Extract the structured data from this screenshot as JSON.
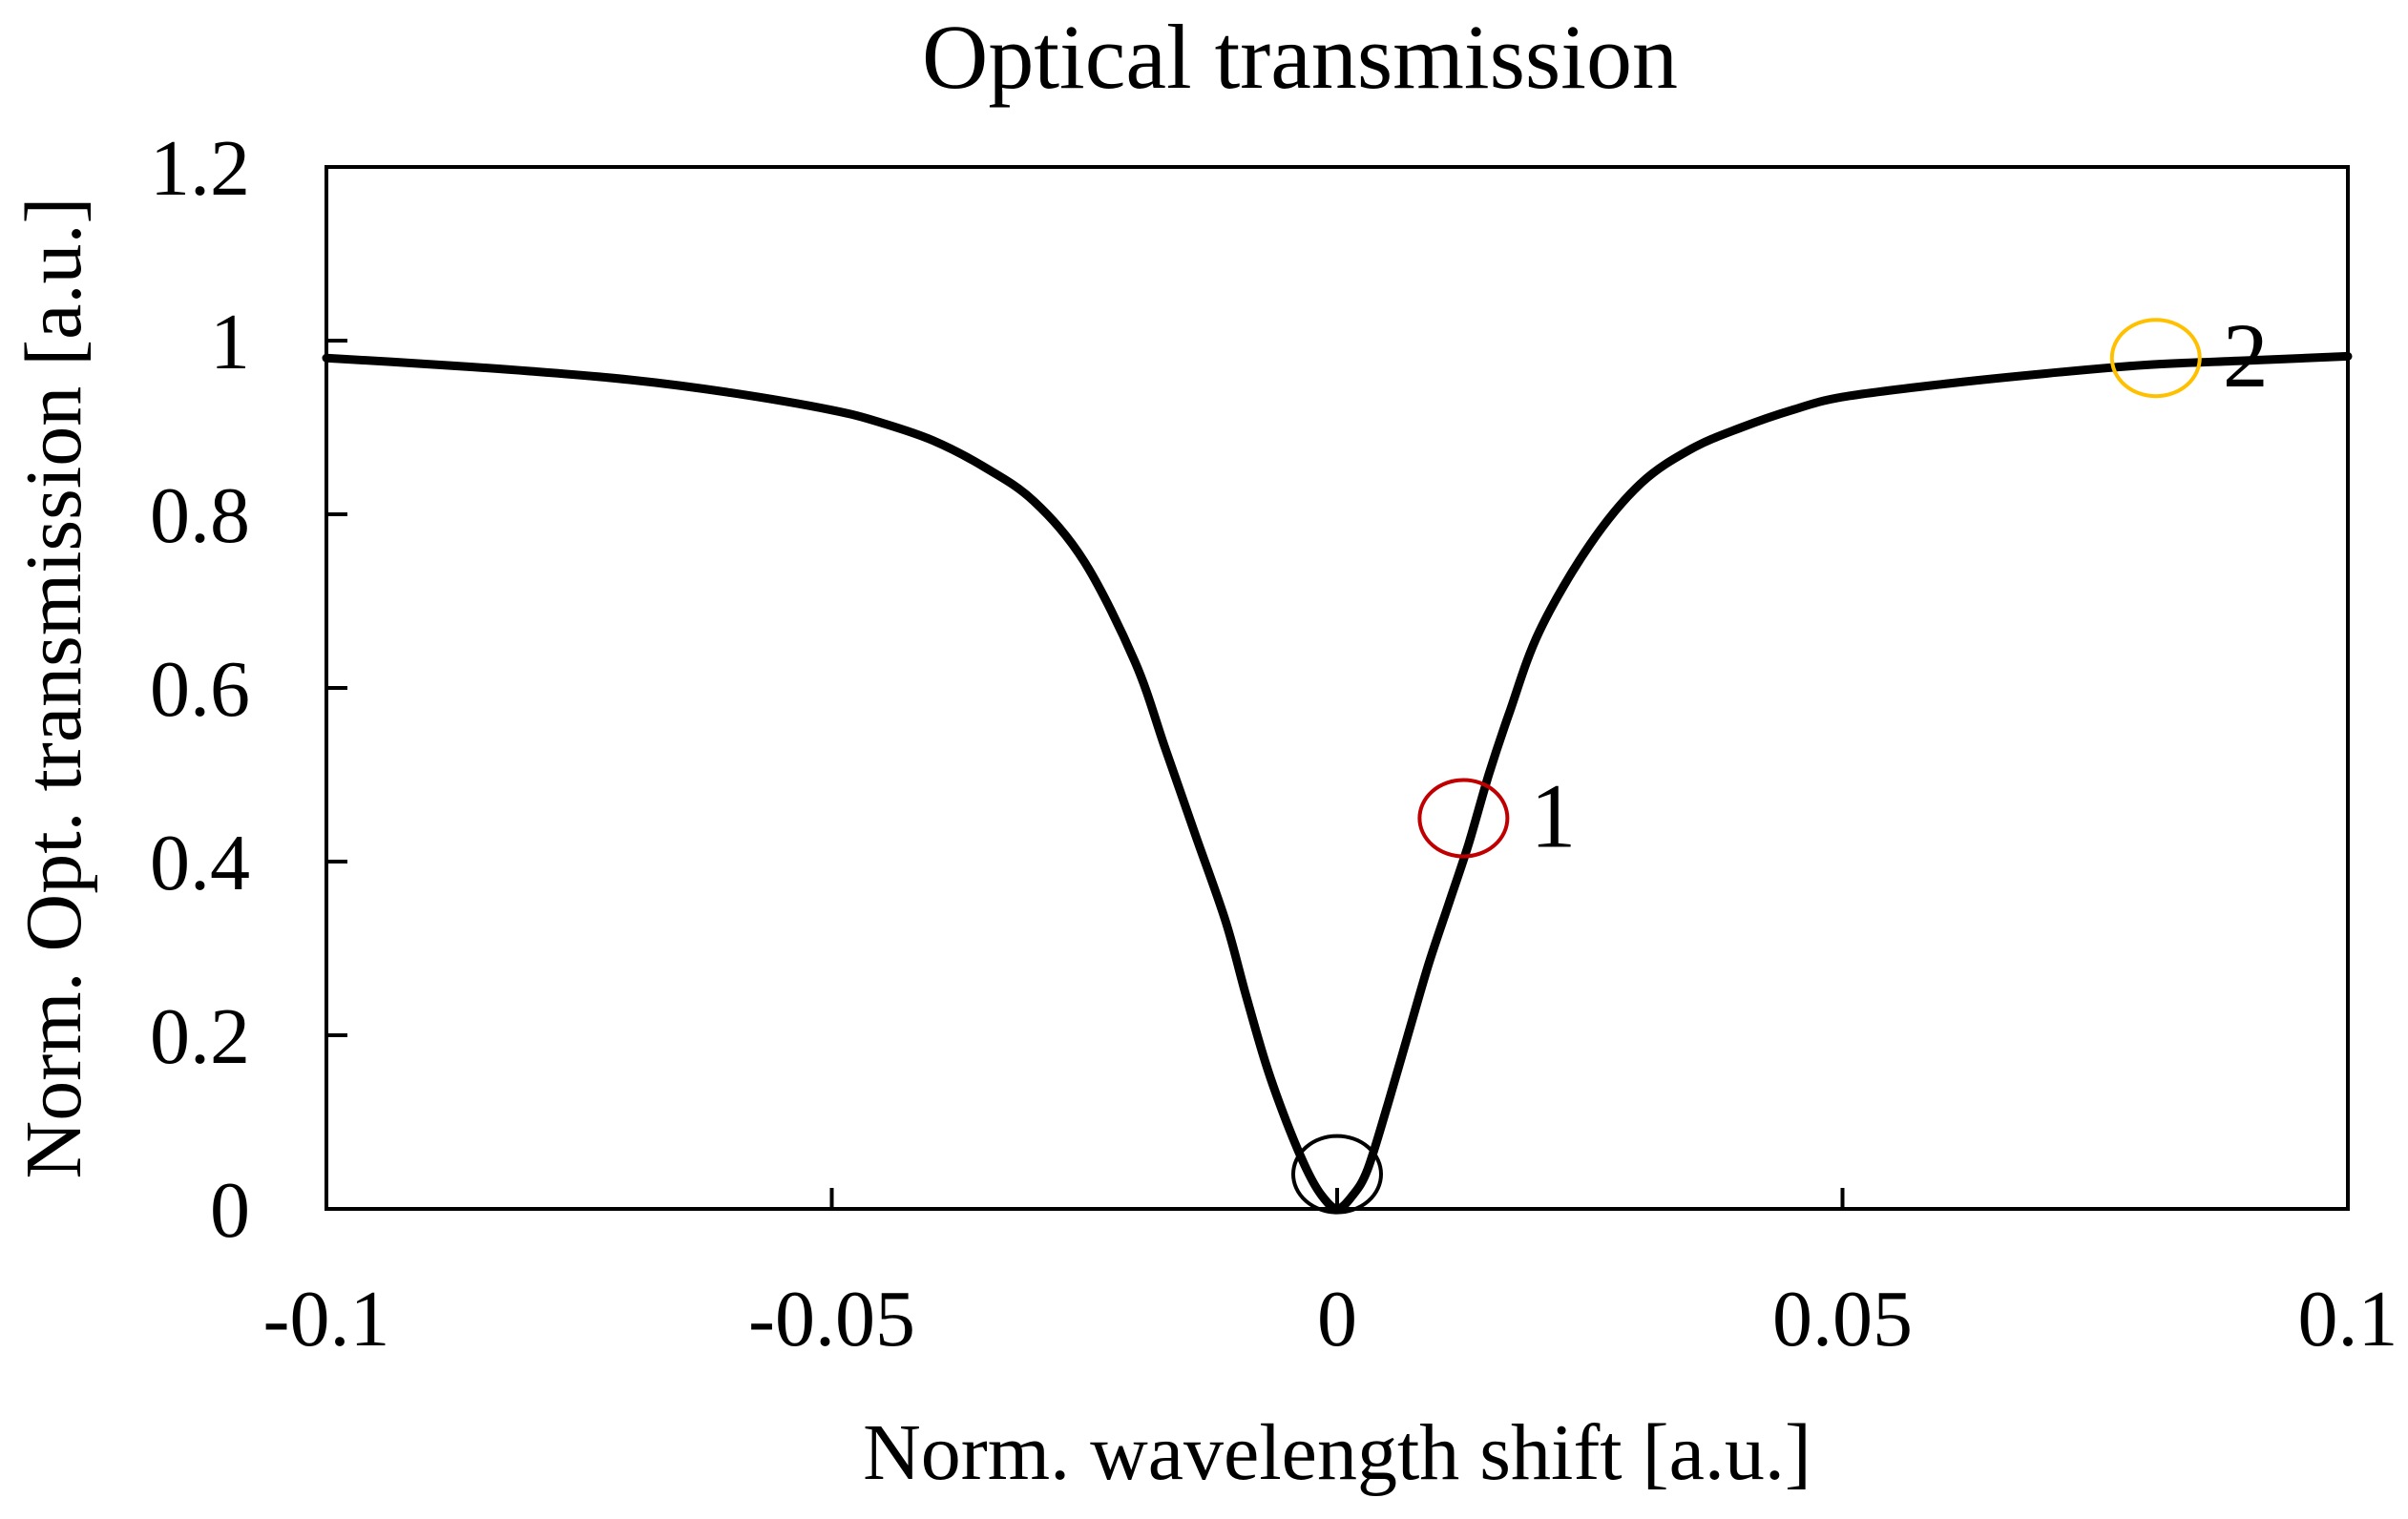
{
  "chart_data": {
    "type": "line",
    "title": "Optical transmission",
    "xlabel": "Norm. wavelength shift [a.u.]",
    "ylabel": "Norm. Opt. transmission [a.u.]",
    "xlim": [
      -0.1,
      0.1
    ],
    "ylim": [
      0,
      1.2
    ],
    "x_ticks": [
      -0.1,
      -0.05,
      0,
      0.05,
      0.1
    ],
    "x_tick_labels": [
      "-0.1",
      "-0.05",
      "0",
      "0.05",
      "0.1"
    ],
    "y_ticks": [
      0,
      0.2,
      0.4,
      0.6,
      0.8,
      1,
      1.2
    ],
    "y_tick_labels": [
      "0",
      "0.2",
      "0.4",
      "0.6",
      "0.8",
      "1",
      "1.2"
    ],
    "grid": false,
    "legend": "none",
    "series": [
      {
        "name": "transmission",
        "color": "#000000",
        "x": [
          -0.1,
          -0.09,
          -0.08,
          -0.07,
          -0.06,
          -0.05,
          -0.045,
          -0.04,
          -0.035,
          -0.03,
          -0.025,
          -0.02,
          -0.017,
          -0.014,
          -0.011,
          -0.009,
          -0.007,
          -0.005,
          -0.003,
          -0.0015,
          0,
          0.0015,
          0.003,
          0.005,
          0.007,
          0.009,
          0.011,
          0.013,
          0.015,
          0.017,
          0.02,
          0.025,
          0.03,
          0.035,
          0.04,
          0.045,
          0.05,
          0.06,
          0.07,
          0.08,
          0.09,
          0.1
        ],
        "y": [
          0.98,
          0.973,
          0.965,
          0.955,
          0.94,
          0.92,
          0.905,
          0.885,
          0.855,
          0.815,
          0.745,
          0.63,
          0.53,
          0.43,
          0.33,
          0.245,
          0.165,
          0.1,
          0.045,
          0.015,
          0,
          0.015,
          0.045,
          0.12,
          0.2,
          0.28,
          0.35,
          0.42,
          0.5,
          0.57,
          0.665,
          0.765,
          0.835,
          0.875,
          0.9,
          0.92,
          0.935,
          0.95,
          0.962,
          0.972,
          0.977,
          0.982
        ]
      }
    ],
    "annotations": [
      {
        "label": "",
        "x": 0,
        "y": 0.04,
        "color": "#000000"
      },
      {
        "label": "1",
        "x": 0.0125,
        "y": 0.45,
        "color": "#c00000"
      },
      {
        "label": "2",
        "x": 0.081,
        "y": 0.98,
        "color": "#ffc000"
      }
    ]
  }
}
